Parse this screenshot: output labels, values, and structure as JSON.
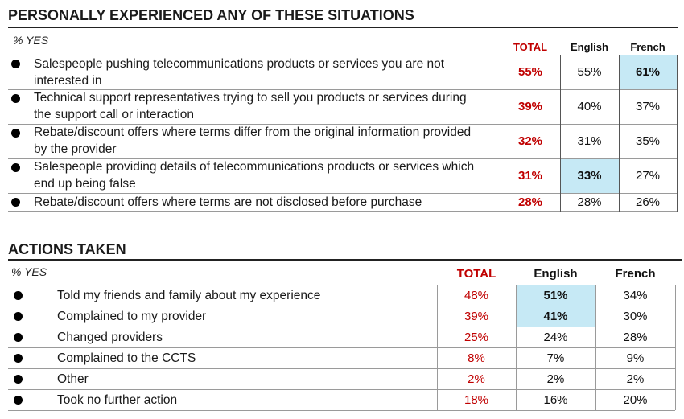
{
  "experienced": {
    "title": "PERSONALLY EXPERIENCED ANY OF THESE SITUATIONS",
    "subtitle": "% YES",
    "columns": [
      "TOTAL",
      "English",
      "French"
    ],
    "rows": [
      {
        "label": "Salespeople pushing telecommunications products or services you are not interested in",
        "total": "55%",
        "english": "55%",
        "french": "61%"
      },
      {
        "label": "Technical support representatives trying to sell you products or services during the support call or interaction",
        "total": "39%",
        "english": "40%",
        "french": "37%"
      },
      {
        "label": "Rebate/discount offers where terms differ from the original information provided by the provider",
        "total": "32%",
        "english": "31%",
        "french": "35%"
      },
      {
        "label": "Salespeople providing details of telecommunications products or services which end up being false",
        "total": "31%",
        "english": "33%",
        "french": "27%"
      },
      {
        "label": "Rebate/discount offers where terms are not disclosed before purchase",
        "total": "28%",
        "english": "28%",
        "french": "26%"
      }
    ]
  },
  "actions": {
    "title": "ACTIONS TAKEN",
    "subtitle": "% YES",
    "columns": [
      "TOTAL",
      "English",
      "French"
    ],
    "rows": [
      {
        "label": "Told my friends and family about my experience",
        "total": "48%",
        "english": "51%",
        "french": "34%"
      },
      {
        "label": "Complained to my provider",
        "total": "39%",
        "english": "41%",
        "french": "30%"
      },
      {
        "label": "Changed providers",
        "total": "25%",
        "english": "24%",
        "french": "28%"
      },
      {
        "label": "Complained to the CCTS",
        "total": "8%",
        "english": "7%",
        "french": "9%"
      },
      {
        "label": "Other",
        "total": "2%",
        "english": "2%",
        "french": "2%"
      },
      {
        "label": "Took no further action",
        "total": "18%",
        "english": "16%",
        "french": "20%"
      }
    ]
  },
  "highlight_color": "#c6e9f5",
  "total_color": "#c00000",
  "chart_data": [
    {
      "type": "table",
      "title": "PERSONALLY EXPERIENCED ANY OF THESE SITUATIONS",
      "unit": "% YES",
      "columns": [
        "TOTAL",
        "English",
        "French"
      ],
      "rows": [
        {
          "label": "Salespeople pushing telecommunications products or services you are not interested in",
          "values": [
            55,
            55,
            61
          ],
          "highlighted": [
            "French"
          ]
        },
        {
          "label": "Technical support representatives trying to sell you products or services during the support call or interaction",
          "values": [
            39,
            40,
            37
          ]
        },
        {
          "label": "Rebate/discount offers where terms differ from the original information provided by the provider",
          "values": [
            32,
            31,
            35
          ]
        },
        {
          "label": "Salespeople providing details of telecommunications products or services which end up being false",
          "values": [
            31,
            33,
            27
          ],
          "highlighted": [
            "English"
          ]
        },
        {
          "label": "Rebate/discount offers where terms are not disclosed before purchase",
          "values": [
            28,
            28,
            26
          ]
        }
      ]
    },
    {
      "type": "table",
      "title": "ACTIONS TAKEN",
      "unit": "% YES",
      "columns": [
        "TOTAL",
        "English",
        "French"
      ],
      "rows": [
        {
          "label": "Told my friends and family about my experience",
          "values": [
            48,
            51,
            34
          ],
          "highlighted": [
            "English"
          ]
        },
        {
          "label": "Complained to my provider",
          "values": [
            39,
            41,
            30
          ],
          "highlighted": [
            "English"
          ]
        },
        {
          "label": "Changed providers",
          "values": [
            25,
            24,
            28
          ]
        },
        {
          "label": "Complained to the CCTS",
          "values": [
            8,
            7,
            9
          ]
        },
        {
          "label": "Other",
          "values": [
            2,
            2,
            2
          ]
        },
        {
          "label": "Took no further action",
          "values": [
            18,
            16,
            20
          ]
        }
      ]
    }
  ]
}
